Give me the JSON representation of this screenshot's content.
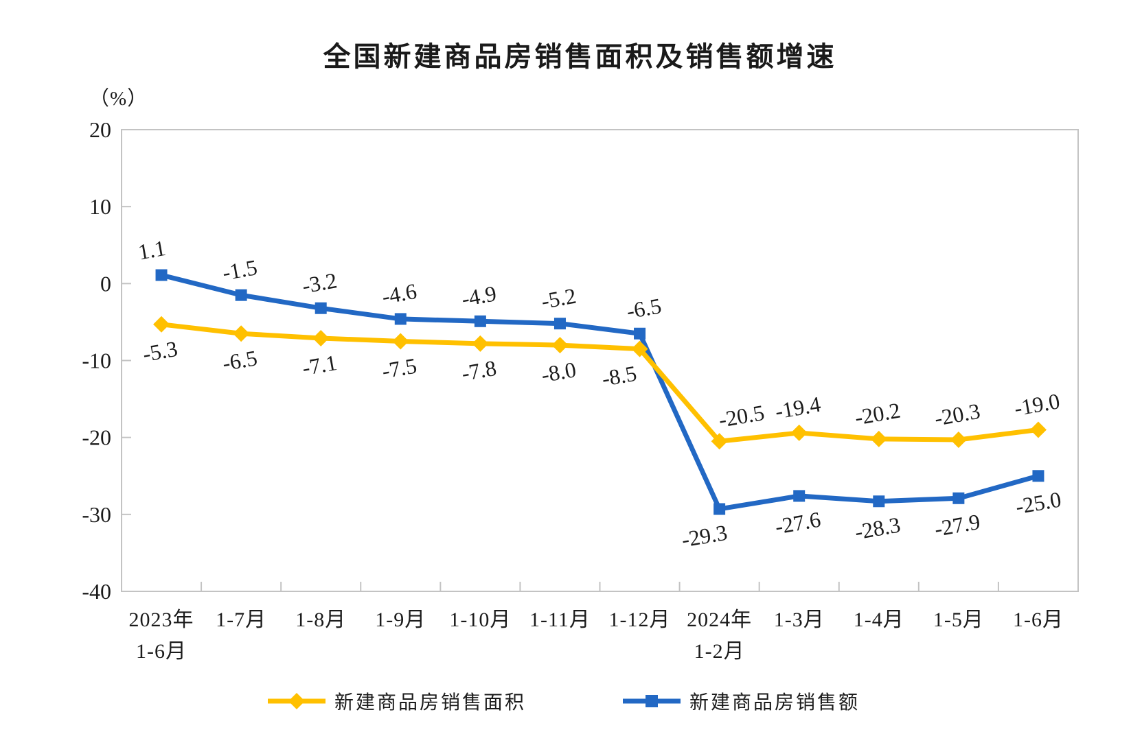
{
  "title": "全国新建商品房销售面积及销售额增速",
  "y_axis_unit": "（%）",
  "chart_data": {
    "type": "line",
    "title": "全国新建商品房销售面积及销售额增速",
    "ylabel": "（%）",
    "ylim": [
      -40,
      20
    ],
    "yticks": [
      20,
      10,
      0,
      -10,
      -20,
      -30,
      -40
    ],
    "grid": false,
    "legend_position": "bottom",
    "categories": [
      [
        "2023年",
        "1-6月"
      ],
      [
        "1-7月"
      ],
      [
        "1-8月"
      ],
      [
        "1-9月"
      ],
      [
        "1-10月"
      ],
      [
        "1-11月"
      ],
      [
        "1-12月"
      ],
      [
        "2024年",
        "1-2月"
      ],
      [
        "1-3月"
      ],
      [
        "1-4月"
      ],
      [
        "1-5月"
      ],
      [
        "1-6月"
      ]
    ],
    "series": [
      {
        "name": "新建商品房销售面积",
        "color": "#FFC000",
        "marker": "diamond",
        "values": [
          -5.3,
          -6.5,
          -7.1,
          -7.5,
          -7.8,
          -8.0,
          -8.5,
          -20.5,
          -19.4,
          -20.2,
          -20.3,
          -19.0
        ],
        "label_side": [
          "below",
          "below",
          "below",
          "below",
          "below",
          "below",
          "below",
          "above",
          "above",
          "above",
          "above",
          "above"
        ]
      },
      {
        "name": "新建商品房销售额",
        "color": "#2268C4",
        "marker": "square",
        "values": [
          1.1,
          -1.5,
          -3.2,
          -4.6,
          -4.9,
          -5.2,
          -6.5,
          -29.3,
          -27.6,
          -28.3,
          -27.9,
          -25.0
        ],
        "label_side": [
          "above",
          "above",
          "above",
          "above",
          "above",
          "above",
          "above",
          "below",
          "below",
          "below",
          "below",
          "below"
        ]
      }
    ]
  }
}
